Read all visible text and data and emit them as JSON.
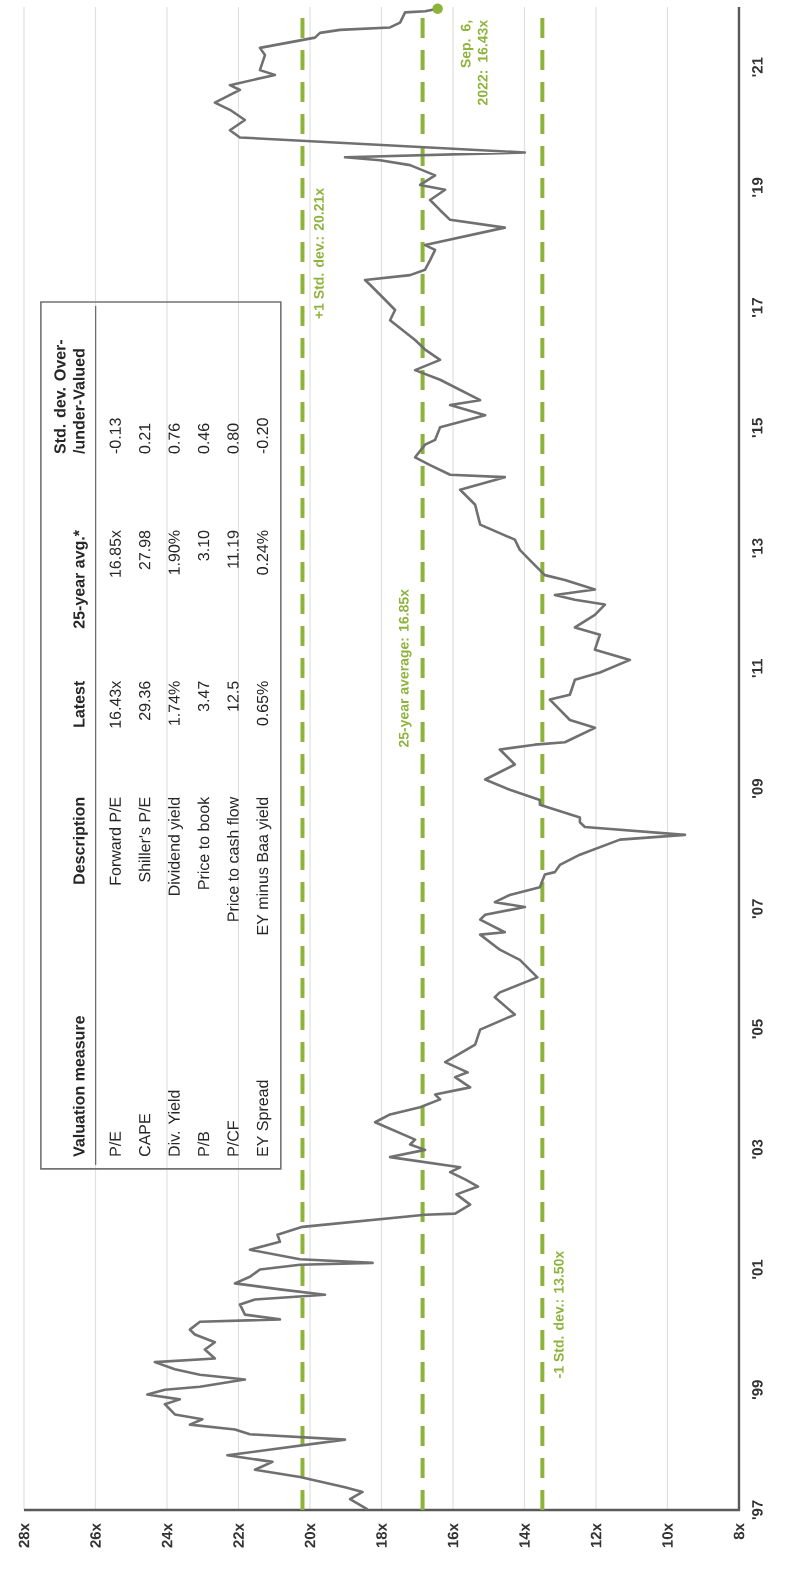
{
  "chart_data": {
    "type": "line",
    "color": "#707070",
    "x": [
      18.39,
      18.88,
      18.53,
      19.02,
      20.28,
      21.54,
      21.05,
      22.31,
      19.02,
      21.68,
      22.1,
      23.36,
      23.01,
      23.78,
      24.06,
      23.64,
      24.55,
      24.06,
      23.08,
      21.82,
      23.08,
      23.78,
      24.34,
      22.66,
      22.94,
      22.66,
      23.22,
      23.36,
      23.08,
      20.84,
      21.82,
      21.96,
      21.54,
      19.58,
      20.84,
      22.1,
      21.68,
      21.4,
      20.28,
      18.25,
      20.28,
      21.68,
      20.84,
      20.91,
      20.21,
      16.78,
      15.94,
      15.52,
      15.9,
      15.3,
      15.66,
      16.08,
      15.8,
      17.76,
      16.78,
      17.2,
      17.06,
      18.18,
      17.76,
      16.92,
      16.36,
      16.5,
      15.52,
      15.94,
      15.59,
      16.22,
      15.38,
      15.24,
      14.27,
      14.83,
      14.69,
      13.64,
      14.13,
      14.69,
      15.24,
      14.55,
      15.24,
      15.1,
      13.99,
      14.83,
      14.41,
      13.57,
      13.43,
      13.15,
      13.01,
      12.45,
      11.33,
      9.51,
      12.31,
      12.45,
      12.45,
      13.57,
      13.57,
      14.41,
      15.1,
      14.27,
      14.69,
      13.71,
      12.87,
      12.03,
      12.73,
      13.29,
      12.73,
      12.59,
      11.89,
      11.05,
      12.03,
      11.89,
      12.59,
      12.03,
      11.75,
      12.59,
      13.15,
      12.03,
      12.87,
      13.43,
      13.85,
      14.13,
      14.27,
      15.24,
      15.38,
      15.8,
      14.55,
      16.08,
      16.64,
      17.06,
      16.78,
      16.5,
      16.36,
      15.1,
      16.08,
      15.24,
      16.36,
      17.06,
      16.36,
      16.78,
      17.06,
      17.76,
      17.62,
      17.9,
      18.32,
      18.46,
      17.2,
      16.78,
      16.64,
      16.5,
      16.78,
      14.55,
      16.08,
      16.36,
      16.64,
      16.22,
      16.92,
      16.5,
      17.2,
      18.04,
      19.02,
      13.99,
      21.96,
      22.24,
      21.82,
      22.24,
      22.66,
      21.96,
      22.24,
      20.98,
      21.4,
      21.26,
      21.4,
      19.86,
      19.72,
      19.16,
      17.76,
      17.48,
      17.34,
      16.78,
      16.43
    ],
    "values": [
      1997.01,
      1997.18,
      1997.3,
      1997.38,
      1997.55,
      1997.67,
      1997.8,
      1997.91,
      1998.17,
      1998.26,
      1998.34,
      1998.42,
      1998.51,
      1998.59,
      1998.76,
      1998.84,
      1998.92,
      1999.0,
      1999.05,
      1999.17,
      1999.25,
      1999.34,
      1999.46,
      1999.52,
      1999.67,
      1999.79,
      1999.92,
      2000.0,
      2000.13,
      2000.17,
      2000.25,
      2000.42,
      2000.5,
      2000.58,
      2000.67,
      2000.77,
      2000.88,
      2001.0,
      2001.08,
      2001.11,
      2001.17,
      2001.33,
      2001.46,
      2001.58,
      2001.71,
      2001.91,
      2001.93,
      2002.08,
      2002.25,
      2002.38,
      2002.5,
      2002.62,
      2002.7,
      2002.87,
      2002.99,
      2003.08,
      2003.16,
      2003.45,
      2003.58,
      2003.7,
      2003.83,
      2003.91,
      2004.03,
      2004.2,
      2004.28,
      2004.45,
      2004.74,
      2004.99,
      2005.24,
      2005.53,
      2005.61,
      2005.86,
      2006.15,
      2006.32,
      2006.57,
      2006.61,
      2006.82,
      2006.9,
      2007.03,
      2007.11,
      2007.23,
      2007.36,
      2007.57,
      2007.61,
      2007.73,
      2007.9,
      2008.15,
      2008.23,
      2008.36,
      2008.44,
      2008.52,
      2008.73,
      2008.81,
      2008.98,
      2009.15,
      2009.4,
      2009.65,
      2009.73,
      2009.77,
      2010.01,
      2010.14,
      2010.48,
      2010.56,
      2010.81,
      2010.93,
      2011.14,
      2011.31,
      2011.56,
      2011.68,
      2011.89,
      2012.06,
      2012.14,
      2012.22,
      2012.31,
      2012.47,
      2012.55,
      2012.8,
      2012.97,
      2013.14,
      2013.39,
      2013.72,
      2013.97,
      2014.18,
      2014.22,
      2014.38,
      2014.51,
      2014.72,
      2014.8,
      2015.01,
      2015.21,
      2015.38,
      2015.46,
      2015.8,
      2015.96,
      2016.13,
      2016.3,
      2016.46,
      2016.79,
      2016.96,
      2017.13,
      2017.38,
      2017.46,
      2017.54,
      2017.63,
      2017.79,
      2017.96,
      2018.04,
      2018.33,
      2018.46,
      2018.62,
      2018.79,
      2018.96,
      2019.04,
      2019.2,
      2019.37,
      2019.45,
      2019.5,
      2019.58,
      2019.83,
      2019.95,
      2020.12,
      2020.29,
      2020.41,
      2020.62,
      2020.7,
      2020.87,
      2020.95,
      2021.2,
      2021.32,
      2021.49,
      2021.57,
      2021.62,
      2021.66,
      2021.74,
      2021.91,
      2021.93,
      2021.97
    ],
    "xlim": [
      28,
      8
    ],
    "ylim": [
      1997,
      2022
    ],
    "xticks": [
      {
        "value": 28,
        "label": "28x"
      },
      {
        "value": 26,
        "label": "26x"
      },
      {
        "value": 24,
        "label": "24x"
      },
      {
        "value": 22,
        "label": "22x"
      },
      {
        "value": 20,
        "label": "20x"
      },
      {
        "value": 18,
        "label": "18x"
      },
      {
        "value": 16,
        "label": "16x"
      },
      {
        "value": 14,
        "label": "14x"
      },
      {
        "value": 12,
        "label": "12x"
      },
      {
        "value": 10,
        "label": "10x"
      },
      {
        "value": 8,
        "label": "8x"
      }
    ],
    "yticks": [
      {
        "value": 1997,
        "label": "'97"
      },
      {
        "value": 1999,
        "label": "'99"
      },
      {
        "value": 2001,
        "label": "'01"
      },
      {
        "value": 2003,
        "label": "'03"
      },
      {
        "value": 2005,
        "label": "'05"
      },
      {
        "value": 2007,
        "label": "'07"
      },
      {
        "value": 2009,
        "label": "'09"
      },
      {
        "value": 2011,
        "label": "'11"
      },
      {
        "value": 2013,
        "label": "'13"
      },
      {
        "value": 2015,
        "label": "'15"
      },
      {
        "value": 2017,
        "label": "'17"
      },
      {
        "value": 2019,
        "label": "'19"
      },
      {
        "value": 2021,
        "label": "'21"
      }
    ],
    "grid": "x",
    "marker": "none",
    "line_style": "solid",
    "ref_lines": [
      {
        "axis": "x",
        "value": 20.21,
        "label": "+1 Std. dev.: 20.21x",
        "color": "#8db33a",
        "line_style": "dashed"
      },
      {
        "axis": "x",
        "value": 16.85,
        "label": "25-year average: 16.85x",
        "color": "#8db33a",
        "line_style": "dashed"
      },
      {
        "axis": "x",
        "value": 13.5,
        "label": "-1 Std. dev.: 13.50x",
        "color": "#8db33a",
        "line_style": "dashed"
      }
    ],
    "annotations": [
      {
        "text": "Sep. 6, 2022: 16.43x",
        "x": 16.43,
        "y": 2021.97
      },
      "Valuation measure",
      "Description",
      "Latest",
      "25-year avg.*",
      "Std. dev. Over-/under-Valued",
      "P/E",
      "Forward P/E",
      "16.43x",
      "16.85x",
      "-0.13",
      "CAPE",
      "Shiller's P/E",
      "29.36",
      "27.98",
      "0.21",
      "Div. Yield",
      "Dividend yield",
      "1.74%",
      "1.90%",
      "0.76",
      "P/B",
      "Price to book",
      "3.47",
      "3.10",
      "0.46",
      "P/CF",
      "Price to cash flow",
      "12.5",
      "11.19",
      "0.80",
      "EY Spread",
      "EY minus Baa yield",
      "0.65%",
      "0.24%",
      "-0.20"
    ]
  }
}
